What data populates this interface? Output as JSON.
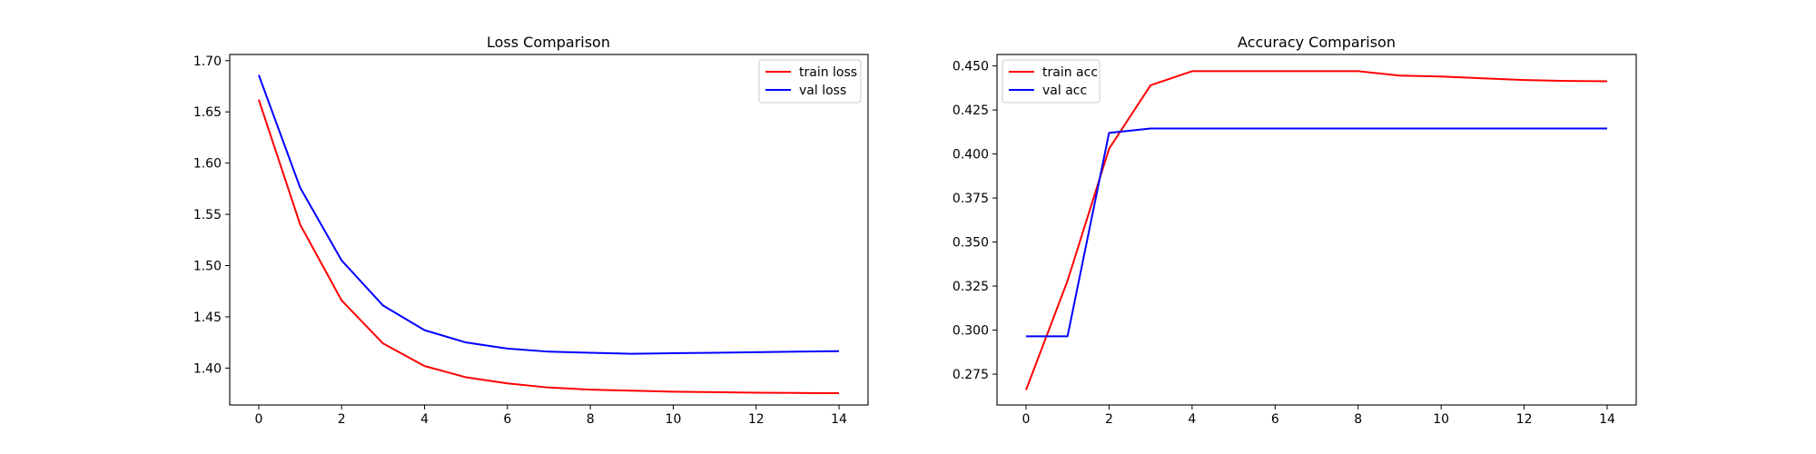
{
  "chart_data": [
    {
      "type": "line",
      "title": "Loss Comparison",
      "xlabel": "",
      "ylabel": "",
      "x": [
        0,
        1,
        2,
        3,
        4,
        5,
        6,
        7,
        8,
        9,
        10,
        11,
        12,
        13,
        14
      ],
      "xlim": [
        -0.7,
        14.7
      ],
      "ylim": [
        1.364,
        1.706
      ],
      "xticks": [
        0,
        2,
        4,
        6,
        8,
        10,
        12,
        14
      ],
      "yticks": [
        1.4,
        1.45,
        1.5,
        1.55,
        1.6,
        1.65,
        1.7
      ],
      "ytick_labels": [
        "1.40",
        "1.45",
        "1.50",
        "1.55",
        "1.60",
        "1.65",
        "1.70"
      ],
      "grid": false,
      "legend_loc": "upper right",
      "series": [
        {
          "name": "train loss",
          "color": "#ff0000",
          "values": [
            1.662,
            1.54,
            1.466,
            1.424,
            1.402,
            1.391,
            1.385,
            1.381,
            1.379,
            1.378,
            1.377,
            1.3765,
            1.376,
            1.3757,
            1.3755
          ]
        },
        {
          "name": "val loss",
          "color": "#0000ff",
          "values": [
            1.686,
            1.576,
            1.505,
            1.461,
            1.437,
            1.425,
            1.419,
            1.416,
            1.415,
            1.414,
            1.4145,
            1.415,
            1.4155,
            1.416,
            1.4165
          ]
        }
      ]
    },
    {
      "type": "line",
      "title": "Accuracy Comparison",
      "xlabel": "",
      "ylabel": "",
      "x": [
        0,
        1,
        2,
        3,
        4,
        5,
        6,
        7,
        8,
        9,
        10,
        11,
        12,
        13,
        14
      ],
      "xlim": [
        -0.7,
        14.7
      ],
      "ylim": [
        0.2575,
        0.4565
      ],
      "xticks": [
        0,
        2,
        4,
        6,
        8,
        10,
        12,
        14
      ],
      "yticks": [
        0.275,
        0.3,
        0.325,
        0.35,
        0.375,
        0.4,
        0.425,
        0.45
      ],
      "ytick_labels": [
        "0.275",
        "0.300",
        "0.325",
        "0.350",
        "0.375",
        "0.400",
        "0.425",
        "0.450"
      ],
      "grid": false,
      "legend_loc": "upper left",
      "series": [
        {
          "name": "train acc",
          "color": "#ff0000",
          "values": [
            0.266,
            0.328,
            0.403,
            0.439,
            0.447,
            0.447,
            0.447,
            0.447,
            0.447,
            0.4445,
            0.444,
            0.443,
            0.442,
            0.4415,
            0.4413
          ]
        },
        {
          "name": "val acc",
          "color": "#0000ff",
          "values": [
            0.2965,
            0.2965,
            0.412,
            0.4145,
            0.4145,
            0.4145,
            0.4145,
            0.4145,
            0.4145,
            0.4145,
            0.4145,
            0.4145,
            0.4145,
            0.4145,
            0.4145
          ]
        }
      ]
    }
  ]
}
